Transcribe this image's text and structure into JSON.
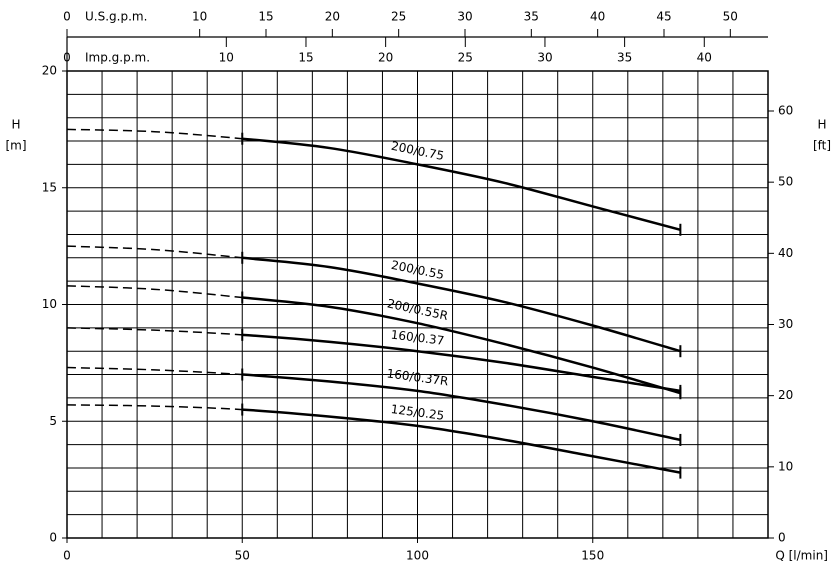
{
  "chart_data": {
    "type": "line",
    "xlabel": "Q [l/min]",
    "ylabel": "H",
    "yunit": "[m]",
    "y2label": "H",
    "y2unit": "[ft]",
    "x": [
      0,
      25,
      50,
      75,
      100,
      125,
      150,
      175
    ],
    "series": [
      {
        "name": "200/0.75",
        "color": "#000000",
        "values": [
          17.5,
          17.4,
          17.1,
          16.7,
          16.0,
          15.2,
          14.2,
          13.2
        ]
      },
      {
        "name": "200/0.55",
        "color": "#000000",
        "values": [
          12.5,
          12.35,
          12.0,
          11.6,
          10.9,
          10.1,
          9.1,
          8.0
        ]
      },
      {
        "name": "200/0.55R",
        "color": "#000000",
        "values": [
          10.8,
          10.65,
          10.3,
          9.9,
          9.2,
          8.3,
          7.3,
          6.2
        ]
      },
      {
        "name": "160/0.37",
        "color": "#000000",
        "values": [
          9.0,
          8.9,
          8.7,
          8.4,
          8.0,
          7.5,
          6.9,
          6.3
        ]
      },
      {
        "name": "160/0.37R",
        "color": "#000000",
        "values": [
          7.3,
          7.2,
          7.0,
          6.7,
          6.3,
          5.7,
          5.0,
          4.2
        ]
      },
      {
        "name": "125/0.25",
        "color": "#000000",
        "values": [
          5.7,
          5.65,
          5.5,
          5.2,
          4.8,
          4.2,
          3.5,
          2.8
        ]
      }
    ],
    "dashed_x_range": [
      0,
      50
    ],
    "xlim": [
      0,
      200
    ],
    "xticks": [
      0,
      50,
      100,
      150
    ],
    "ylim": [
      0,
      20
    ],
    "yticks": [
      0,
      5,
      10,
      15,
      20
    ],
    "y2lim": [
      0,
      65.62
    ],
    "y2ticks": [
      0,
      10,
      20,
      30,
      40,
      50,
      60
    ],
    "xgrid": [
      0,
      10,
      20,
      30,
      40,
      50,
      60,
      70,
      80,
      90,
      100,
      110,
      120,
      130,
      140,
      150,
      160,
      170,
      180,
      190,
      200
    ],
    "ygrid": [
      0,
      1,
      2,
      3,
      4,
      5,
      6,
      7,
      8,
      9,
      10,
      11,
      12,
      13,
      14,
      15,
      16,
      17,
      18,
      19,
      20
    ],
    "grid": true,
    "top_axes": [
      {
        "label": "U.S.g.p.m.",
        "xlim": [
          0,
          52.84
        ],
        "xticks": [
          0,
          10,
          15,
          20,
          25,
          30,
          35,
          40,
          45,
          50
        ]
      },
      {
        "label": "Imp.g.p.m.",
        "xlim": [
          0,
          44
        ],
        "xticks": [
          0,
          10,
          15,
          20,
          25,
          30,
          35,
          40
        ]
      }
    ]
  }
}
